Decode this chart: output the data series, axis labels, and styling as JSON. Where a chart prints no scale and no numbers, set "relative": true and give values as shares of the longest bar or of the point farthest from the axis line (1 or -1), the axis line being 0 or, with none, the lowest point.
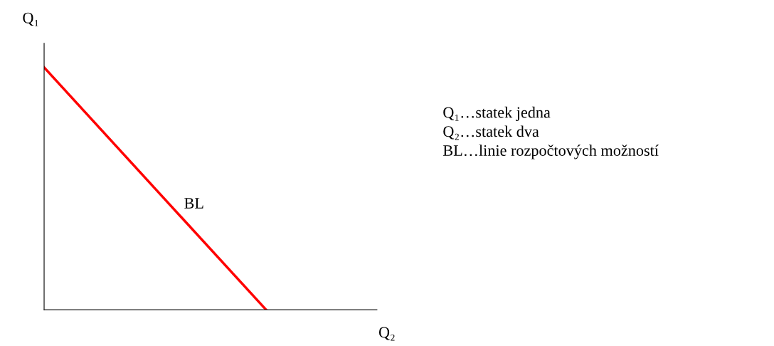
{
  "chart_data": {
    "type": "line",
    "relative": true,
    "categories": [
      null,
      null,
      null,
      null
    ],
    "series": [
      {
        "color": "#ff0000",
        "values": [
          1,
          0.5,
          0,
          null
        ]
      }
    ],
    "xlabel": "Q₂",
    "ylabel": "Q₁",
    "annotations": [
      "BL",
      "Q₁…statek jedna",
      "Q₂…statek dva",
      "BL…linie rozpočtových možností"
    ],
    "grid": false,
    "legend": false,
    "marker": "none",
    "line_style": "solid"
  }
}
